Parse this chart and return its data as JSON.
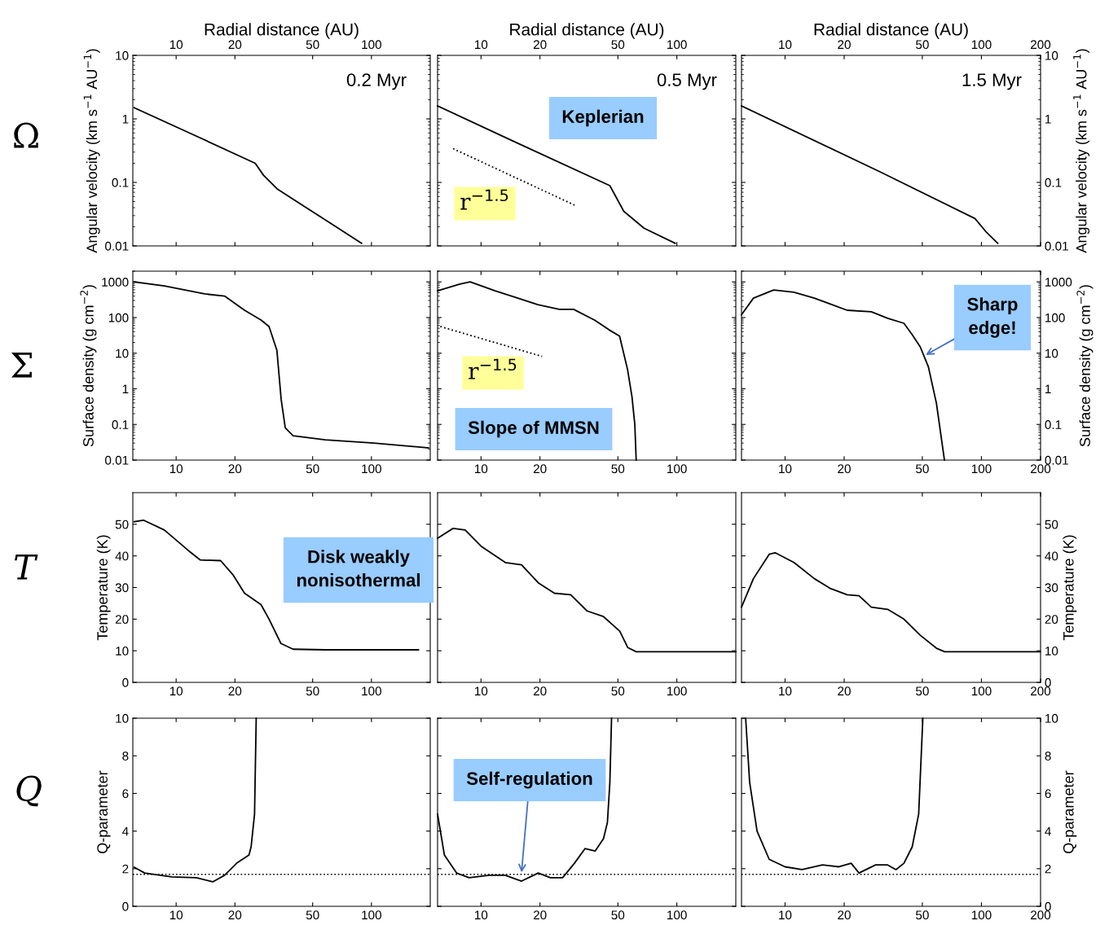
{
  "chart_data": [
    {
      "type": "line",
      "xlabel": "Radial distance (AU)",
      "ylabel": "Angular velocity (km s$^{−1}$ AU$^{−1}$)",
      "log": "xy",
      "xlim": [
        6,
        200
      ],
      "xticks": [
        10,
        20,
        50,
        100
      ],
      "ylim": [
        0.01,
        10
      ],
      "yticks": [
        0.01,
        0.1,
        1,
        10
      ],
      "annotations": [
        "Ω",
        "0.2 Myr"
      ],
      "series": [
        {
          "color": "#000000",
          "x": [
            6.1,
            12,
            25.4,
            28,
            32.9,
            60,
            89
          ],
          "values": [
            1.5,
            0.58,
            0.2,
            0.13,
            0.079,
            0.024,
            0.011
          ]
        }
      ]
    },
    {
      "type": "line",
      "xlabel": "Radial distance (AU)",
      "log": "xy",
      "xlim": [
        6,
        200
      ],
      "xticks": [
        10,
        20,
        50,
        100
      ],
      "ylim": [
        0.01,
        10
      ],
      "yticks": [
        0.01,
        0.1,
        1,
        10
      ],
      "tick_labels": "x",
      "annotations": [
        "0.5 Myr",
        "Keplerian",
        "r$^{−1.5}$"
      ],
      "series": [
        {
          "color": "#000000",
          "x": [
            6,
            15,
            45.5,
            53.6,
            68,
            98
          ],
          "values": [
            1.6,
            0.43,
            0.089,
            0.035,
            0.019,
            0.011
          ]
        },
        {
          "color": "#000000",
          "line_style": "dotted",
          "x": [
            7.2,
            30
          ],
          "values": [
            0.34,
            0.044
          ]
        }
      ]
    },
    {
      "type": "line",
      "xlabel": "Radial distance (AU)",
      "ylabel": "Angular velocity (km s$^{−1}$ AU$^{−1}$)",
      "log": "xy",
      "xlim": [
        6,
        200
      ],
      "xticks": [
        10,
        20,
        50,
        100,
        200
      ],
      "ylim": [
        0.01,
        10
      ],
      "yticks": [
        0.01,
        0.1,
        1,
        10
      ],
      "annotations": [
        "1.5 Myr"
      ],
      "series": [
        {
          "color": "#000000",
          "x": [
            6,
            30,
            92.7,
            105,
            121
          ],
          "values": [
            1.6,
            0.15,
            0.027,
            0.017,
            0.011
          ]
        }
      ]
    },
    {
      "type": "line",
      "ylabel": "Surface density (g cm$^{−2}$)",
      "log": "xy",
      "xlim": [
        6,
        200
      ],
      "xticks": [
        10,
        20,
        50,
        100
      ],
      "ylim": [
        0.01,
        2000
      ],
      "yticks": [
        0.01,
        0.1,
        1,
        10,
        100,
        1000
      ],
      "annotations": [
        "Σ"
      ],
      "series": [
        {
          "color": "#000000",
          "x": [
            6.1,
            8.7,
            14,
            17.7,
            22.4,
            27.2,
            29.9,
            32.8,
            34.5,
            36.2,
            39.7,
            58,
            103,
            196
          ],
          "values": [
            1000,
            770,
            460,
            400,
            160,
            85,
            56,
            12,
            0.5,
            0.08,
            0.048,
            0.037,
            0.03,
            0.022
          ]
        }
      ]
    },
    {
      "type": "line",
      "log": "xy",
      "xlim": [
        6,
        200
      ],
      "xticks": [
        10,
        20,
        50,
        100
      ],
      "ylim": [
        0.01,
        2000
      ],
      "yticks": [
        0.01,
        0.1,
        1,
        10,
        100,
        1000
      ],
      "tick_labels": "x",
      "annotations": [
        "r$^{−1.5}$",
        "Slope of MMSN"
      ],
      "series": [
        {
          "color": "#000000",
          "x": [
            6,
            7.8,
            8.8,
            11.8,
            15.2,
            19.5,
            25.1,
            29.7,
            38.1,
            45.1,
            51,
            56,
            59,
            61,
            62
          ],
          "values": [
            560,
            870,
            1000,
            560,
            360,
            230,
            170,
            170,
            84,
            45,
            30,
            3.5,
            0.6,
            0.1,
            0.01
          ]
        },
        {
          "color": "#000000",
          "line_style": "dotted",
          "x": [
            6.2,
            20.5
          ],
          "values": [
            56,
            8.1
          ]
        }
      ]
    },
    {
      "type": "line",
      "ylabel": "Surface density (g cm$^{−2}$)",
      "log": "xy",
      "xlim": [
        6,
        200
      ],
      "xticks": [
        10,
        20,
        50,
        100,
        200
      ],
      "ylim": [
        0.01,
        2000
      ],
      "yticks": [
        0.01,
        0.1,
        1,
        10,
        100,
        1000
      ],
      "annotations": [
        {
          "text": "Sharp edge!",
          "x": 52,
          "y": 8.9
        }
      ],
      "series": [
        {
          "color": "#000000",
          "x": [
            6,
            6.9,
            8.75,
            11.1,
            14.1,
            20.7,
            27.5,
            33.3,
            40.3,
            44.4,
            48.8,
            53.7,
            59,
            64.8
          ],
          "values": [
            120,
            350,
            590,
            510,
            350,
            160,
            145,
            95,
            69,
            33,
            15,
            4.1,
            0.39,
            0.01
          ]
        }
      ]
    },
    {
      "type": "line",
      "ylabel": "Temperature (K)",
      "log": "x",
      "xlim": [
        6,
        200
      ],
      "xticks": [
        10,
        20,
        50,
        100
      ],
      "ylim": [
        0,
        60
      ],
      "yticks": [
        0,
        10,
        20,
        30,
        40,
        50
      ],
      "annotations": [
        "T",
        "Disk weakly nonisothermal"
      ],
      "series": [
        {
          "color": "#000000",
          "x": [
            6.1,
            6.8,
            8.7,
            11.5,
            13.3,
            16.9,
            19.5,
            22.4,
            27.2,
            29.9,
            34.4,
            39.7,
            58,
            174
          ],
          "values": [
            50.8,
            51.3,
            48.2,
            41.8,
            38.7,
            38.5,
            34.1,
            28.2,
            24.6,
            20,
            12.3,
            10.5,
            10.3,
            10.3
          ]
        }
      ]
    },
    {
      "type": "line",
      "log": "x",
      "xlim": [
        6,
        200
      ],
      "xticks": [
        10,
        20,
        50,
        100
      ],
      "ylim": [
        0,
        60
      ],
      "yticks": [
        0,
        10,
        20,
        30,
        40,
        50
      ],
      "tick_labels": "x",
      "series": [
        {
          "color": "#000000",
          "x": [
            6,
            7.2,
            8.3,
            10,
            13.3,
            16.1,
            19.6,
            23.7,
            28.7,
            34.8,
            42.2,
            51.1,
            56.2,
            62,
            200
          ],
          "values": [
            45.6,
            48.7,
            48.2,
            43.1,
            37.9,
            37.2,
            31.5,
            28.2,
            27.7,
            22.6,
            20.8,
            16.2,
            11,
            9.7,
            9.7
          ]
        }
      ]
    },
    {
      "type": "line",
      "ylabel": "Temperature (K)",
      "log": "x",
      "xlim": [
        6,
        200
      ],
      "xticks": [
        10,
        20,
        50,
        100,
        200
      ],
      "ylim": [
        0,
        60
      ],
      "yticks": [
        0,
        10,
        20,
        30,
        40,
        50
      ],
      "series": [
        {
          "color": "#000000",
          "x": [
            6,
            6.9,
            8.3,
            8.9,
            11.1,
            14.1,
            17,
            20.7,
            23.8,
            27.5,
            33.3,
            40.3,
            48.8,
            59,
            65,
            199
          ],
          "values": [
            23.8,
            32.8,
            40.5,
            41,
            37.9,
            32.8,
            29.7,
            27.7,
            27.4,
            23.8,
            23.1,
            20,
            14.9,
            10.8,
            9.7,
            9.7
          ]
        }
      ]
    },
    {
      "type": "line",
      "ylabel": "Q-parameter",
      "log": "x",
      "xlim": [
        6,
        200
      ],
      "xticks": [
        10,
        20,
        50,
        100
      ],
      "ylim": [
        0,
        10
      ],
      "yticks": [
        0,
        2,
        4,
        6,
        8,
        10
      ],
      "annotations": [
        "Q"
      ],
      "ref_lines": [
        {
          "axis": "y",
          "value": 1.7,
          "color": "#000000",
          "line_style": "dotted"
        }
      ],
      "series": [
        {
          "color": "#000000",
          "x": [
            6.1,
            6.9,
            9.5,
            12.7,
            15.4,
            17.7,
            20.4,
            23.6,
            24.2,
            25.2,
            25.7
          ],
          "values": [
            2.08,
            1.77,
            1.56,
            1.52,
            1.3,
            1.65,
            2.29,
            2.73,
            3.16,
            4.9,
            10
          ]
        }
      ]
    },
    {
      "type": "line",
      "log": "x",
      "xlim": [
        6,
        200
      ],
      "xticks": [
        10,
        20,
        50,
        100
      ],
      "ylim": [
        0,
        10
      ],
      "yticks": [
        0,
        2,
        4,
        6,
        8,
        10
      ],
      "tick_labels": "x",
      "annotations": [
        {
          "text": "Self-regulation",
          "x": 16.1,
          "y": 1.8
        }
      ],
      "ref_lines": [
        {
          "axis": "y",
          "value": 1.7,
          "color": "#000000",
          "line_style": "dotted"
        }
      ],
      "series": [
        {
          "color": "#000000",
          "x": [
            6,
            6.5,
            7.5,
            8.7,
            11,
            13.3,
            16.1,
            19.6,
            22.6,
            26.1,
            30,
            34,
            38.3,
            42.2,
            44.2,
            45.5,
            46.4
          ],
          "values": [
            4.9,
            2.73,
            1.77,
            1.52,
            1.65,
            1.65,
            1.34,
            1.77,
            1.52,
            1.52,
            2.29,
            3.07,
            2.94,
            3.59,
            4.46,
            6.6,
            10
          ]
        }
      ]
    },
    {
      "type": "line",
      "ylabel": "Q-parameter",
      "log": "x",
      "xlim": [
        6,
        200
      ],
      "xticks": [
        10,
        20,
        50,
        100,
        200
      ],
      "ylim": [
        0,
        10
      ],
      "yticks": [
        0,
        2,
        4,
        6,
        8,
        10
      ],
      "ref_lines": [
        {
          "axis": "y",
          "value": 1.7,
          "color": "#000000",
          "line_style": "dotted"
        }
      ],
      "series": [
        {
          "color": "#000000",
          "x": [
            6.3,
            6.6,
            7.2,
            8.3,
            10,
            12.2,
            15.5,
            18.8,
            21.7,
            23.8,
            28.9,
            33.3,
            36.7,
            40.3,
            44.4,
            47.9,
            50.3
          ],
          "values": [
            10,
            6.6,
            4,
            2.5,
            2.1,
            1.95,
            2.2,
            2.1,
            2.29,
            1.77,
            2.2,
            2.2,
            1.95,
            2.29,
            3.16,
            4.9,
            10
          ]
        }
      ]
    }
  ]
}
